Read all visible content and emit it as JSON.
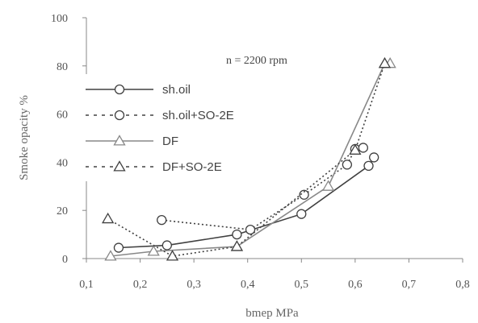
{
  "chart_data": {
    "type": "line",
    "xlabel": "bmep MPa",
    "ylabel": "Smoke opacity %",
    "annotation": "n = 2200 rpm",
    "xlim": [
      0.1,
      0.8
    ],
    "ylim": [
      0,
      100
    ],
    "x_ticks": [
      "0,1",
      "0,2",
      "0,3",
      "0,4",
      "0,5",
      "0,6",
      "0,7",
      "0,8"
    ],
    "y_ticks": [
      "0",
      "20",
      "40",
      "60",
      "80",
      "100"
    ],
    "grid": false,
    "legend_position": "left",
    "series": [
      {
        "name": "sh.oil",
        "style": "solid",
        "marker": "circle",
        "color": "#404040",
        "points": [
          [
            0.16,
            4.5
          ],
          [
            0.25,
            5.5
          ],
          [
            0.38,
            10
          ],
          [
            0.5,
            18.5
          ],
          [
            0.625,
            38.5
          ],
          [
            0.635,
            42
          ]
        ]
      },
      {
        "name": "sh.oil+SO-2E",
        "style": "dotted",
        "marker": "circle",
        "color": "#404040",
        "points": [
          [
            0.24,
            16
          ],
          [
            0.405,
            12
          ],
          [
            0.505,
            26.5
          ],
          [
            0.585,
            39
          ],
          [
            0.6,
            45.5
          ],
          [
            0.615,
            46
          ]
        ]
      },
      {
        "name": "DF",
        "style": "solid",
        "marker": "triangle",
        "color": "#888888",
        "points": [
          [
            0.145,
            1
          ],
          [
            0.225,
            3
          ],
          [
            0.38,
            5
          ],
          [
            0.55,
            30
          ],
          [
            0.655,
            81
          ],
          [
            0.665,
            81
          ]
        ]
      },
      {
        "name": "DF+SO-2E",
        "style": "dotted",
        "marker": "triangle",
        "color": "#404040",
        "points": [
          [
            0.14,
            16.5
          ],
          [
            0.26,
            1
          ],
          [
            0.38,
            5
          ],
          [
            0.6,
            45
          ],
          [
            0.655,
            81
          ]
        ]
      }
    ]
  }
}
